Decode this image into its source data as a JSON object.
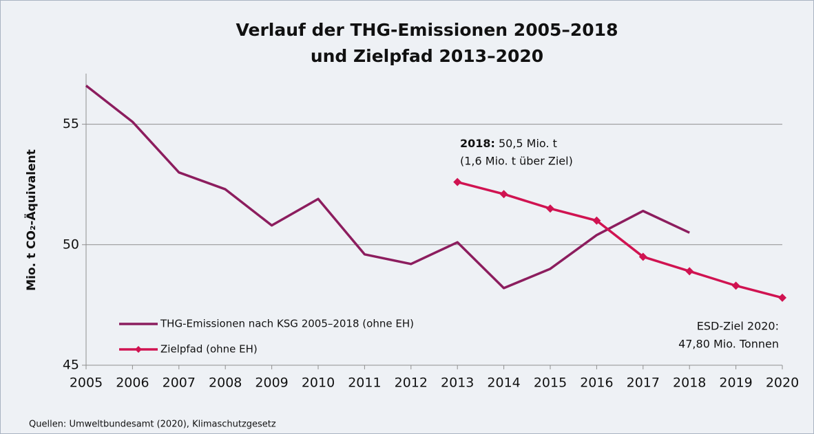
{
  "chart_data": {
    "type": "line",
    "title": [
      "Verlauf der THG-Emissionen 2005–2018",
      "und Zielpfad 2013–2020"
    ],
    "y_label": "Mio. t CO₂-Äquivalent",
    "categories": [
      "2005",
      "2006",
      "2007",
      "2008",
      "2009",
      "2010",
      "2011",
      "2012",
      "2013",
      "2014",
      "2015",
      "2016",
      "2017",
      "2018",
      "2019",
      "2020"
    ],
    "series": [
      {
        "name": "THG-Emissionen nach KSG 2005–2018 (ohne EH)",
        "color": "#8c1d5e",
        "marker": false,
        "values": [
          56.6,
          55.1,
          53.0,
          52.3,
          50.8,
          51.9,
          49.6,
          49.2,
          50.1,
          48.2,
          49.0,
          50.4,
          51.4,
          50.5,
          null,
          null
        ]
      },
      {
        "name": "Zielpfad (ohne EH)",
        "color": "#d01351",
        "marker": true,
        "values": [
          null,
          null,
          null,
          null,
          null,
          null,
          null,
          null,
          52.6,
          52.1,
          51.5,
          51.0,
          49.5,
          48.9,
          48.3,
          47.8
        ]
      }
    ],
    "ylim": [
      45,
      57.1
    ],
    "yticks": [
      45,
      50,
      55
    ],
    "grid": true,
    "legend": "lower left",
    "annotations": [
      {
        "bold": "2018:",
        "lines": [
          "50,5 Mio. t",
          "(1,6 Mio. t über Ziel)"
        ]
      },
      {
        "lines": [
          "ESD-Ziel 2020:",
          "47,80 Mio. Tonnen"
        ]
      }
    ],
    "source": "Quellen: Umweltbundesamt (2020), Klimaschutzgesetz"
  }
}
